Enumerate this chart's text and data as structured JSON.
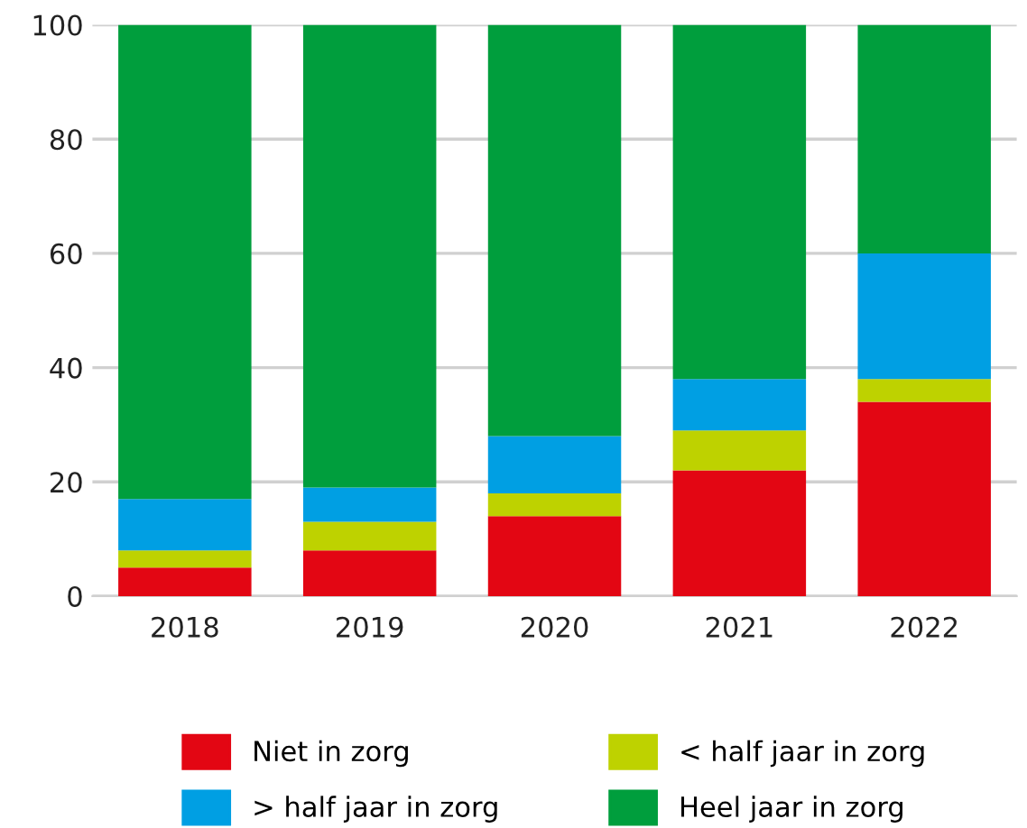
{
  "chart_data": {
    "type": "bar",
    "stacked": true,
    "categories": [
      "2018",
      "2019",
      "2020",
      "2021",
      "2022"
    ],
    "series": [
      {
        "name": "Niet in zorg",
        "color": "#e30613",
        "values": [
          5,
          8,
          14,
          22,
          34
        ]
      },
      {
        "name": "< half jaar in zorg",
        "color": "#bed200",
        "values": [
          3,
          5,
          4,
          7,
          4
        ]
      },
      {
        "name": "> half jaar in zorg",
        "color": "#009fe3",
        "values": [
          9,
          6,
          10,
          9,
          22
        ]
      },
      {
        "name": "Heel jaar in zorg",
        "color": "#009e3d",
        "values": [
          83,
          81,
          72,
          62,
          40
        ]
      }
    ],
    "ylim": [
      0,
      100
    ],
    "yticks": [
      0,
      20,
      40,
      60,
      80,
      100
    ],
    "grid": "y",
    "legend": "bottom"
  }
}
